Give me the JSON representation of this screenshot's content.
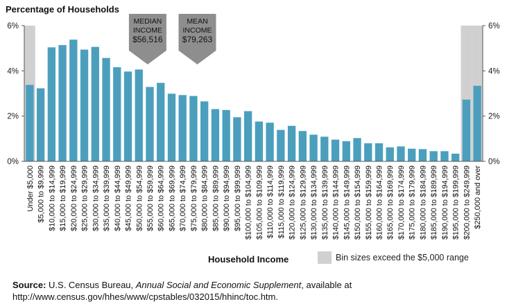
{
  "chart_data": {
    "type": "bar",
    "title": "Percentage of Households",
    "xlabel": "Household Income",
    "ylabel": "",
    "ylim": [
      0,
      6
    ],
    "yticks": [
      "0%",
      "2%",
      "4%",
      "6%"
    ],
    "grid": false,
    "categories": [
      "Under $5,000",
      "$5,000 to $9,999",
      "$10,000 to $14,999",
      "$15,000 to $19,999",
      "$20,000 to $24,999",
      "$25,000 to $29,999",
      "$30,000 to $34,999",
      "$35,000 to $39,999",
      "$40,000 to $44,999",
      "$45,000 to $49,999",
      "$50,000 to $54,999",
      "$55,000 to $59,999",
      "$60,000 to $64,999",
      "$65,000 to $69,999",
      "$70,000 to $74,999",
      "$75,000 to $79,999",
      "$80,000 to $84,999",
      "$85,000 to $89,999",
      "$90,000 to $94,999",
      "$95,000 to $99,999",
      "$100,000 to $104,999",
      "$105,000 to $109,999",
      "$110,000 to $114,999",
      "$115,000 to $119,999",
      "$120,000 to $124,999",
      "$125,000 to $129,999",
      "$130,000 to $134,999",
      "$135,000 to $139,999",
      "$140,000 to $144,999",
      "$145,000 to $149,999",
      "$150,000 to $154,999",
      "$155,000 to $159,999",
      "$160,000 to $164,999",
      "$165,000 to $169,999",
      "$170,000 to $174,999",
      "$175,000 to $179,999",
      "$180,000 to $184,999",
      "$185,000 to $189,999",
      "$190,000 to $194,999",
      "$195,000 to $199,999",
      "$200,000 to $249,999",
      "$250,000 and over"
    ],
    "values": [
      3.38,
      3.23,
      5.04,
      5.14,
      5.38,
      4.94,
      5.06,
      4.57,
      4.16,
      3.97,
      4.06,
      3.29,
      3.47,
      2.99,
      2.93,
      2.89,
      2.65,
      2.31,
      2.27,
      1.95,
      2.22,
      1.76,
      1.71,
      1.39,
      1.57,
      1.34,
      1.18,
      1.09,
      0.96,
      0.89,
      1.03,
      0.8,
      0.8,
      0.62,
      0.66,
      0.56,
      0.54,
      0.45,
      0.45,
      0.34,
      2.73,
      3.34
    ],
    "highlight_bins": [
      0,
      40,
      41
    ],
    "colors": {
      "bar": "#4b9fbd",
      "highlight_band": "#d0d0d0",
      "annotation_arrow": "#8e8e8e",
      "axis": "#555555"
    },
    "annotations": [
      {
        "label_lines": [
          "MEDIAN",
          "INCOME"
        ],
        "value": "$56,516",
        "x_value": 56516
      },
      {
        "label_lines": [
          "MEAN",
          "INCOME"
        ],
        "value": "$79,263",
        "x_value": 79263
      }
    ],
    "legend": {
      "label": "Bin sizes exceed the $5,000 range",
      "placement": "bottom-right"
    }
  },
  "source": {
    "label": "Source:",
    "text_before": " U.S. Census Bureau, ",
    "publication": "Annual Social and Economic Supplement",
    "text_after": ", available at http://www.census.gov/hhes/www/cpstables/032015/hhinc/toc.htm."
  }
}
